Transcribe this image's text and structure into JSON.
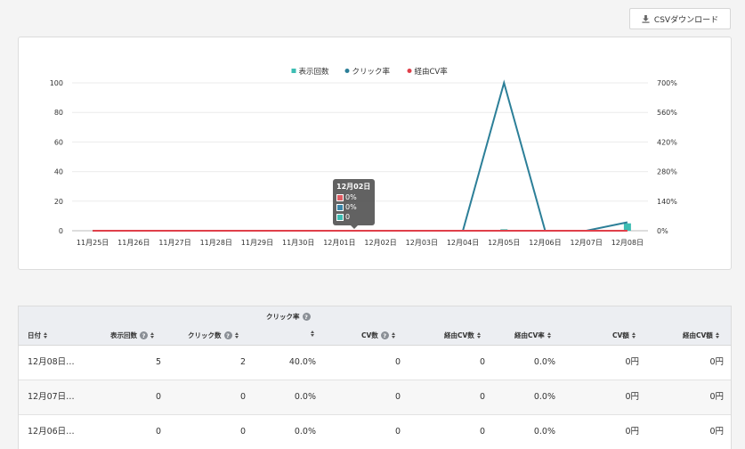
{
  "toolbar": {
    "csv_label": "CSVダウンロード",
    "csv_icon": "download-icon"
  },
  "chart_data": {
    "type": "line",
    "categories": [
      "11月25日",
      "11月26日",
      "11月27日",
      "11月28日",
      "11月29日",
      "11月30日",
      "12月01日",
      "12月02日",
      "12月03日",
      "12月04日",
      "12月05日",
      "12月06日",
      "12月07日",
      "12月08日"
    ],
    "series": [
      {
        "name": "表示回数",
        "type": "bar",
        "axis": "left",
        "color": "#3dbdb3",
        "values": [
          0,
          0,
          0,
          0,
          0,
          0,
          0,
          0,
          0,
          0,
          1,
          0,
          0,
          5
        ]
      },
      {
        "name": "クリック率",
        "type": "line",
        "axis": "right",
        "color": "#2c7f98",
        "values": [
          0,
          0,
          0,
          0,
          0,
          0,
          0,
          0,
          0,
          0,
          700,
          0,
          0,
          40
        ]
      },
      {
        "name": "経由CV率",
        "type": "line",
        "axis": "right",
        "color": "#e0404a",
        "values": [
          0,
          0,
          0,
          0,
          0,
          0,
          0,
          0,
          0,
          0,
          0,
          0,
          0,
          0
        ]
      }
    ],
    "y_left": {
      "min": 0,
      "max": 100,
      "ticks": [
        "0",
        "20",
        "40",
        "60",
        "80",
        "100"
      ]
    },
    "y_right": {
      "min": 0,
      "max": 700,
      "ticks": [
        "0%",
        "140%",
        "280%",
        "420%",
        "560%",
        "700%"
      ]
    },
    "legend_position": "top-center",
    "grid": true
  },
  "tooltip": {
    "title": "12月02日",
    "rows": [
      {
        "color": "#e05c63",
        "text": "0%"
      },
      {
        "color": "#3a86a8",
        "text": "0%"
      },
      {
        "color": "#3dbdb3",
        "text": "0"
      }
    ]
  },
  "table": {
    "headers": {
      "date": "日付",
      "impressions": "表示回数",
      "clicks": "クリック数",
      "ctr": "クリック率",
      "cv": "CV数",
      "via_cv": "経由CV数",
      "via_cv_rate": "経由CV率",
      "cv_amount": "CV額",
      "via_cv_amount": "経由CV額"
    },
    "rows": [
      {
        "date": "12月08日…",
        "impressions": "5",
        "clicks": "2",
        "ctr": "40.0%",
        "cv": "0",
        "via_cv": "0",
        "via_cv_rate": "0.0%",
        "cv_amount": "0円",
        "via_cv_amount": "0円"
      },
      {
        "date": "12月07日…",
        "impressions": "0",
        "clicks": "0",
        "ctr": "0.0%",
        "cv": "0",
        "via_cv": "0",
        "via_cv_rate": "0.0%",
        "cv_amount": "0円",
        "via_cv_amount": "0円"
      },
      {
        "date": "12月06日…",
        "impressions": "0",
        "clicks": "0",
        "ctr": "0.0%",
        "cv": "0",
        "via_cv": "0",
        "via_cv_rate": "0.0%",
        "cv_amount": "0円",
        "via_cv_amount": "0円"
      }
    ]
  }
}
